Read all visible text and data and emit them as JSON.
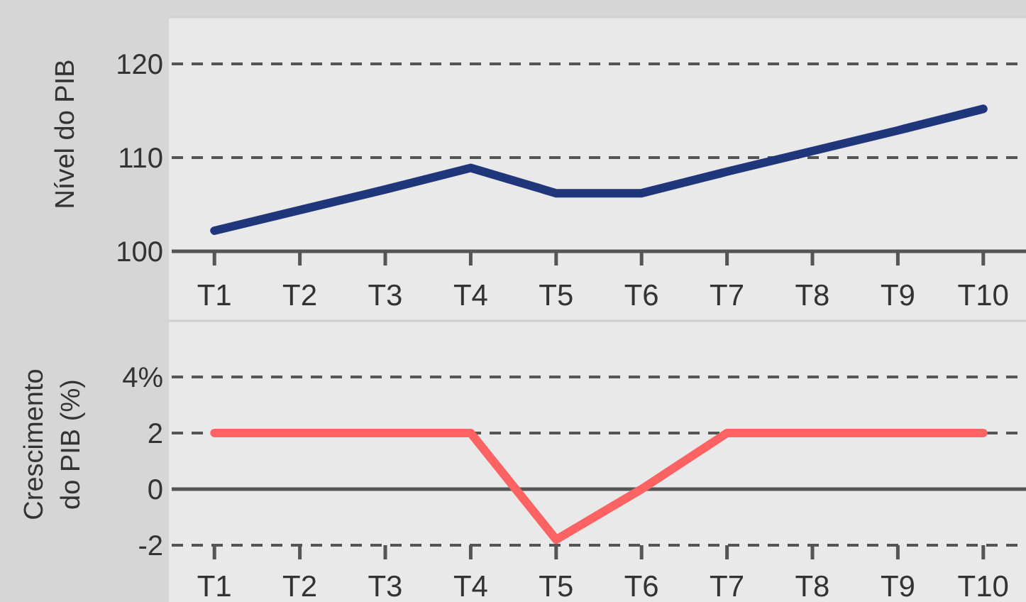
{
  "chart_data": [
    {
      "type": "line",
      "ylabel": "Nível do PIB",
      "categories": [
        "T1",
        "T2",
        "T3",
        "T4",
        "T5",
        "T6",
        "T7",
        "T8",
        "T9",
        "T10"
      ],
      "series": [
        {
          "color": "#1f367a",
          "values": [
            102.2,
            104.4,
            106.6,
            108.9,
            106.2,
            106.2,
            108.5,
            110.7,
            112.9,
            115.2
          ]
        }
      ],
      "ylim": [
        100,
        125
      ],
      "yticks": [
        100,
        110,
        120
      ],
      "grid": "y",
      "line_style": "solid",
      "marker": "none"
    },
    {
      "type": "line",
      "ylabel": "Crescimento\ndo PIB (%)",
      "categories": [
        "T1",
        "T2",
        "T3",
        "T4",
        "T5",
        "T6",
        "T7",
        "T8",
        "T9",
        "T10"
      ],
      "series": [
        {
          "color": "#ff6262",
          "values": [
            2,
            2,
            2,
            2,
            -1.8,
            0,
            2,
            2,
            2,
            2
          ]
        }
      ],
      "ylim": [
        -2,
        6
      ],
      "yticks": [
        -2,
        0,
        2,
        {
          "value": 4,
          "label": "4%"
        }
      ],
      "grid": "y",
      "line_style": "solid",
      "marker": "none",
      "ref_lines": [
        {
          "axis": "y",
          "value": 0,
          "color": "#555555",
          "line_style": "solid"
        }
      ]
    }
  ]
}
